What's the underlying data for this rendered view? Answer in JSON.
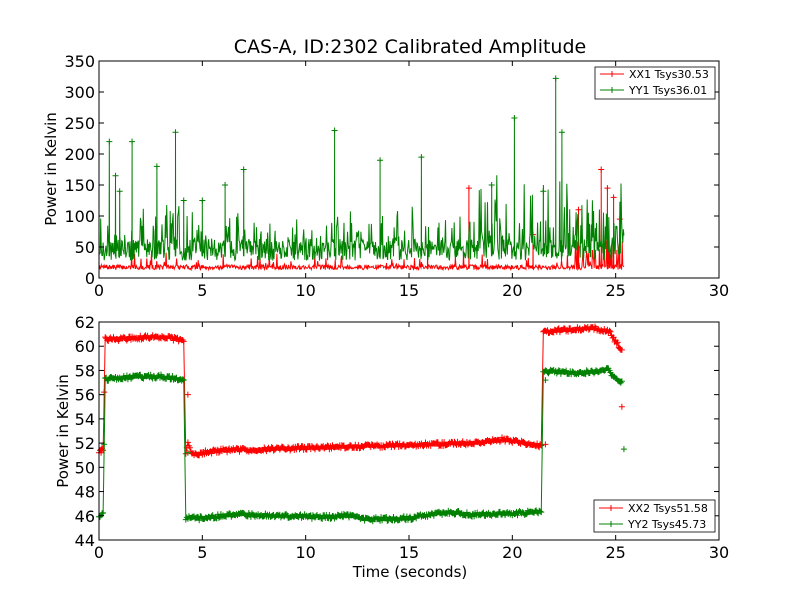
{
  "chart_data": [
    {
      "type": "line",
      "title": "CAS-A, ID:2302 Calibrated Amplitude",
      "xlabel": "",
      "ylabel": "Power in Kelvin",
      "xlim": [
        0,
        30
      ],
      "ylim": [
        0,
        350
      ],
      "x_ticks": [
        0,
        5,
        10,
        15,
        20,
        25,
        30
      ],
      "y_ticks": [
        0,
        50,
        100,
        150,
        200,
        250,
        300,
        350
      ],
      "legend_position": "top-right",
      "grid": false,
      "series": [
        {
          "name": "XX1 Tsys30.53",
          "color": "#ff0000",
          "marker": "+",
          "x_range": [
            0,
            25.4
          ],
          "baseline": 15,
          "spread": 8,
          "spikes": [
            [
              17.9,
              145
            ],
            [
              23.2,
              110
            ],
            [
              24.3,
              175
            ],
            [
              24.6,
              145
            ],
            [
              24.9,
              130
            ],
            [
              25.2,
              95
            ],
            [
              21.0,
              70
            ],
            [
              15.9,
              50
            ]
          ]
        },
        {
          "name": "YY1 Tsys36.01",
          "color": "#008000",
          "marker": "+",
          "x_range": [
            0,
            25.4
          ],
          "baseline": 35,
          "spread": 35,
          "spikes": [
            [
              0.5,
              220
            ],
            [
              0.8,
              165
            ],
            [
              1.0,
              140
            ],
            [
              1.6,
              220
            ],
            [
              2.8,
              180
            ],
            [
              3.7,
              235
            ],
            [
              4.1,
              125
            ],
            [
              5.0,
              125
            ],
            [
              6.1,
              150
            ],
            [
              7.0,
              175
            ],
            [
              11.4,
              238
            ],
            [
              13.6,
              190
            ],
            [
              15.6,
              195
            ],
            [
              20.1,
              258
            ],
            [
              22.1,
              322
            ],
            [
              22.4,
              235
            ],
            [
              19.0,
              150
            ],
            [
              21.5,
              140
            ]
          ]
        }
      ]
    },
    {
      "type": "line",
      "title": "",
      "xlabel": "Time (seconds)",
      "ylabel": "Power in Kelvin",
      "xlim": [
        0,
        30
      ],
      "ylim": [
        44,
        62
      ],
      "x_ticks": [
        0,
        5,
        10,
        15,
        20,
        25,
        30
      ],
      "y_ticks": [
        44,
        46,
        48,
        50,
        52,
        54,
        56,
        58,
        60,
        62
      ],
      "legend_position": "bottom-right",
      "grid": false,
      "series": [
        {
          "name": "XX2 Tsys51.58",
          "color": "#ff0000",
          "marker": "+",
          "segments": [
            [
              [
                0.0,
                51.3
              ],
              [
                0.2,
                51.5
              ],
              [
                0.3,
                60.6
              ],
              [
                1.0,
                60.6
              ],
              [
                2.0,
                60.7
              ],
              [
                3.0,
                60.8
              ],
              [
                4.0,
                60.5
              ],
              [
                4.1,
                60.4
              ]
            ],
            [
              [
                4.2,
                51.1
              ],
              [
                4.3,
                52.0
              ],
              [
                4.5,
                51.1
              ],
              [
                6.0,
                51.4
              ],
              [
                8.0,
                51.5
              ],
              [
                10.0,
                51.6
              ],
              [
                12.0,
                51.7
              ],
              [
                14.0,
                51.8
              ],
              [
                16.0,
                51.9
              ],
              [
                18.0,
                52.0
              ],
              [
                19.5,
                52.3
              ],
              [
                20.5,
                52.0
              ],
              [
                21.4,
                51.8
              ]
            ],
            [
              [
                21.5,
                61.2
              ],
              [
                22.0,
                61.3
              ],
              [
                23.0,
                61.4
              ],
              [
                24.0,
                61.5
              ],
              [
                24.7,
                61.2
              ],
              [
                25.0,
                60.4
              ],
              [
                25.3,
                59.7
              ]
            ]
          ],
          "drops": [
            [
              0.1,
              51.2
            ],
            [
              4.3,
              56.0
            ],
            [
              21.6,
              51.9
            ],
            [
              25.3,
              55.0
            ]
          ]
        },
        {
          "name": "YY2 Tsys45.73",
          "color": "#008000",
          "marker": "+",
          "segments": [
            [
              [
                0.0,
                46.0
              ],
              [
                0.2,
                46.2
              ],
              [
                0.3,
                57.3
              ],
              [
                1.0,
                57.4
              ],
              [
                2.0,
                57.5
              ],
              [
                3.0,
                57.5
              ],
              [
                4.0,
                57.3
              ],
              [
                4.1,
                57.2
              ]
            ],
            [
              [
                4.2,
                45.8
              ],
              [
                5.0,
                45.8
              ],
              [
                6.0,
                46.0
              ],
              [
                7.0,
                46.1
              ],
              [
                9.0,
                46.0
              ],
              [
                11.0,
                45.9
              ],
              [
                12.0,
                46.0
              ],
              [
                13.0,
                45.7
              ],
              [
                15.0,
                45.8
              ],
              [
                16.0,
                46.1
              ],
              [
                17.0,
                46.3
              ],
              [
                18.0,
                46.1
              ],
              [
                20.0,
                46.2
              ],
              [
                21.4,
                46.3
              ]
            ],
            [
              [
                21.5,
                57.9
              ],
              [
                22.0,
                57.9
              ],
              [
                23.0,
                57.8
              ],
              [
                24.0,
                57.9
              ],
              [
                24.6,
                58.1
              ],
              [
                24.9,
                57.5
              ],
              [
                25.3,
                57.1
              ]
            ]
          ],
          "drops": [
            [
              4.3,
              51.2
            ],
            [
              21.6,
              57.2
            ],
            [
              25.4,
              51.5
            ]
          ]
        }
      ]
    }
  ]
}
